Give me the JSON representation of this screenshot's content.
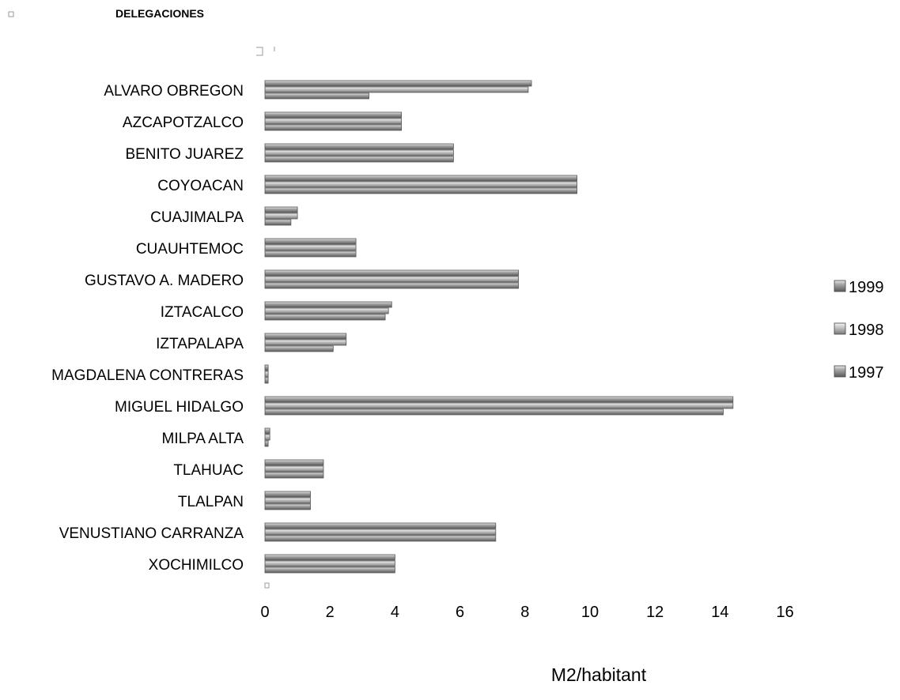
{
  "chart_data": {
    "type": "bar",
    "orientation": "horizontal",
    "title": "DELEGACIONES",
    "xlabel": "M2/habitant",
    "ylabel": "",
    "xlim": [
      0,
      16
    ],
    "xticks": [
      0,
      2,
      4,
      6,
      8,
      10,
      12,
      14,
      16
    ],
    "grid": false,
    "legend_position": "right",
    "categories": [
      "ALVARO OBREGON",
      "AZCAPOTZALCO",
      "BENITO JUAREZ",
      "COYOACAN",
      "CUAJIMALPA",
      "CUAUHTEMOC",
      "GUSTAVO A. MADERO",
      "IZTACALCO",
      "IZTAPALAPA",
      "MAGDALENA CONTRERAS",
      "MIGUEL HIDALGO",
      "MILPA ALTA",
      "TLAHUAC",
      "TLALPAN",
      "VENUSTIANO CARRANZA",
      "XOCHIMILCO"
    ],
    "series": [
      {
        "name": "1999",
        "color": "#8c8c8c",
        "values": [
          8.2,
          4.2,
          5.8,
          9.6,
          1.0,
          2.8,
          7.8,
          3.9,
          2.5,
          0.1,
          14.4,
          0.15,
          1.8,
          1.4,
          7.1,
          4.0
        ]
      },
      {
        "name": "1998",
        "color": "#b4b4b4",
        "values": [
          8.1,
          4.2,
          5.8,
          9.6,
          1.0,
          2.8,
          7.8,
          3.8,
          2.5,
          0.1,
          14.4,
          0.15,
          1.8,
          1.4,
          7.1,
          4.0
        ]
      },
      {
        "name": "1997",
        "color": "#6e6e6e",
        "values": [
          3.2,
          4.2,
          5.8,
          9.6,
          0.8,
          2.8,
          7.8,
          3.7,
          2.1,
          0.1,
          14.1,
          0.1,
          1.8,
          1.4,
          7.1,
          4.0
        ]
      }
    ]
  }
}
